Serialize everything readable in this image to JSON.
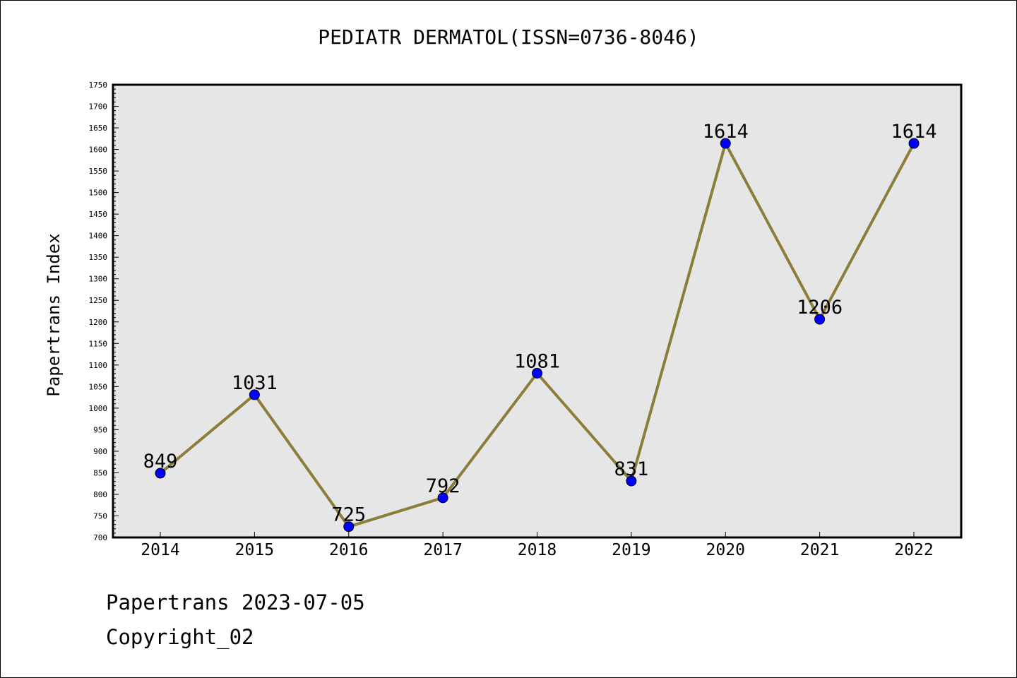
{
  "chart_data": {
    "type": "line",
    "title": "PEDIATR DERMATOL(ISSN=0736-8046)",
    "ylabel": "Papertrans Index",
    "xlabel": "",
    "categories": [
      "2014",
      "2015",
      "2016",
      "2017",
      "2018",
      "2019",
      "2020",
      "2021",
      "2022"
    ],
    "values": [
      849,
      1031,
      725,
      792,
      1081,
      831,
      1614,
      1206,
      1614
    ],
    "ylim": [
      700,
      1750
    ],
    "ytick_step": 50,
    "grid": false,
    "colors": {
      "line": "#8b7d3a",
      "marker": "#0000ff",
      "plot_bg": "#e6e6e6"
    }
  },
  "footer": {
    "date_line": "Papertrans 2023-07-05",
    "copyright": "Copyright_02"
  }
}
